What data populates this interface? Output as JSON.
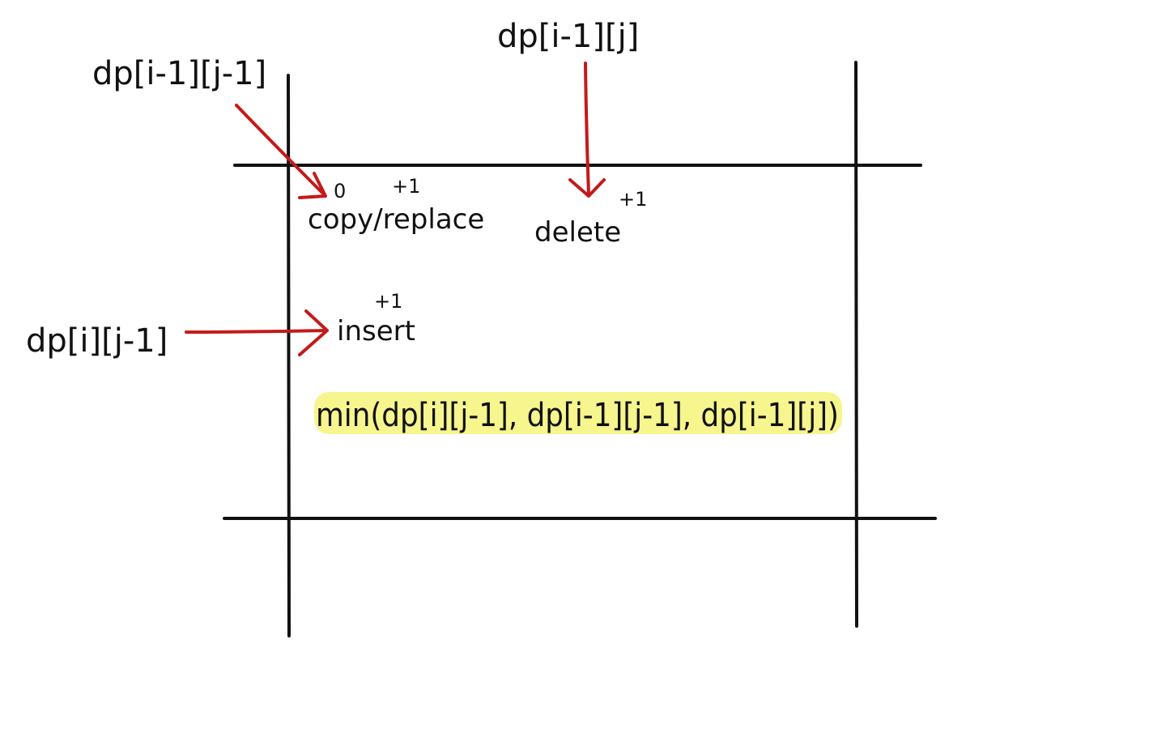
{
  "colors": {
    "ink": "#111111",
    "arrow": "#c41a1a",
    "highlight": "#f4f37a"
  },
  "sources": {
    "diagonal": "dp[i-1][j-1]",
    "up": "dp[i-1][j]",
    "left": "dp[i][j-1]"
  },
  "operations": {
    "copy_replace": "copy/replace",
    "copy_cost": "0",
    "replace_cost": "+1",
    "delete": "delete",
    "delete_cost": "+1",
    "insert": "insert",
    "insert_cost": "+1"
  },
  "formula": "min(dp[i][j-1], dp[i-1][j-1], dp[i-1][j])"
}
